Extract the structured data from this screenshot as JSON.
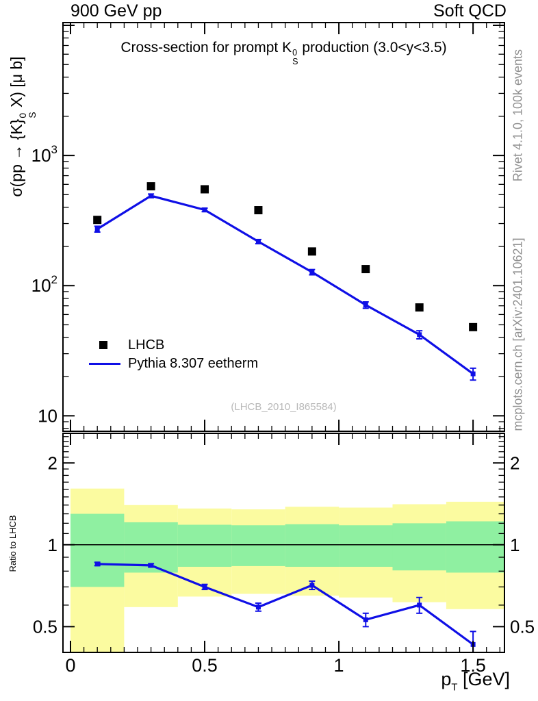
{
  "header": {
    "left": "900 GeV pp",
    "right": "Soft QCD"
  },
  "side_notes": {
    "top": "Rivet 4.1.0,  100k events",
    "bottom": "mcplots.cern.ch [arXiv:2401.10621]"
  },
  "watermark": "(LHCB_2010_I865584)",
  "title": {
    "pre": "Cross-section for prompt K",
    "sup": "0",
    "sub": "S",
    "post": " production (3.0<y<3.5)"
  },
  "axes": {
    "y_main": {
      "pre": "σ(pp → {K}",
      "sup": "0",
      "sub": "S",
      "post": " X) [μ b]"
    },
    "y_ratio": "Ratio to LHCB",
    "x": {
      "pre": "p",
      "sub": "T",
      "post": " [GeV]"
    }
  },
  "legend": [
    {
      "label": "LHCB",
      "marker": "black-square",
      "color": "#000000"
    },
    {
      "label": "Pythia 8.307 eetherm",
      "marker": "blue-line",
      "color": "#0f0fe6"
    }
  ],
  "colors": {
    "blue": "#0f0fe6",
    "band_yellow": "#fbfba0",
    "band_green": "#8ff0a1",
    "gray_text": "#909090",
    "watermark": "#b8b8b8"
  },
  "chart_data": [
    {
      "id": "main",
      "type": "line",
      "yscale": "log",
      "xlim": [
        -0.028,
        1.617
      ],
      "ylim": [
        7.6,
        10500
      ],
      "x": [
        0.1,
        0.3,
        0.5,
        0.7,
        0.9,
        1.1,
        1.3,
        1.5
      ],
      "series": [
        {
          "name": "LHCB",
          "style": "scatter",
          "marker": "square",
          "color": "#000000",
          "values": [
            320,
            580,
            550,
            380,
            183,
            134,
            68,
            48
          ]
        },
        {
          "name": "Pythia 8.307 eetherm",
          "style": "line-markers",
          "color": "#0f0fe6",
          "values": [
            272,
            490,
            382,
            218,
            127,
            71,
            42,
            21
          ],
          "yerr": [
            14,
            16,
            12,
            8,
            6,
            4,
            3,
            2.2
          ]
        }
      ],
      "xticks": [
        {
          "v": 0,
          "label": "0"
        },
        {
          "v": 0.5,
          "label": "0.5"
        },
        {
          "v": 1,
          "label": "1"
        },
        {
          "v": 1.5,
          "label": "1.5"
        }
      ],
      "yticks": [
        {
          "v": 1000,
          "mant": "10",
          "exp": "3"
        },
        {
          "v": 100,
          "mant": "10",
          "exp": "2"
        },
        {
          "v": 10,
          "mant": "10",
          "exp": ""
        }
      ],
      "xminor_step": 0.05,
      "show_x_labels": false
    },
    {
      "id": "ratio",
      "type": "line",
      "yscale": "log",
      "xlim": [
        -0.028,
        1.617
      ],
      "ylim": [
        0.402,
        2.57
      ],
      "refline": 1,
      "bin_edges": [
        0,
        0.2,
        0.4,
        0.6,
        0.8,
        1.0,
        1.2,
        1.4,
        1.617
      ],
      "band_yellow": {
        "lo": [
          0.4,
          0.59,
          0.645,
          0.66,
          0.65,
          0.64,
          0.615,
          0.58
        ],
        "hi": [
          1.61,
          1.4,
          1.36,
          1.35,
          1.38,
          1.37,
          1.41,
          1.44
        ]
      },
      "band_green": {
        "lo": [
          0.7,
          0.79,
          0.83,
          0.835,
          0.83,
          0.83,
          0.805,
          0.79
        ],
        "hi": [
          1.3,
          1.21,
          1.185,
          1.18,
          1.19,
          1.18,
          1.2,
          1.22
        ]
      },
      "x": [
        0.1,
        0.3,
        0.5,
        0.7,
        0.9,
        1.1,
        1.3,
        1.5
      ],
      "series": [
        {
          "name": "Pythia 8.307 eetherm / LHCB",
          "style": "line-markers",
          "color": "#0f0fe6",
          "values": [
            0.85,
            0.84,
            0.7,
            0.59,
            0.71,
            0.53,
            0.6,
            0.43
          ],
          "yerr": [
            0.012,
            0.012,
            0.015,
            0.02,
            0.025,
            0.03,
            0.04,
            0.05
          ]
        }
      ],
      "yticks": [
        {
          "v": 2,
          "label": "2"
        },
        {
          "v": 1,
          "label": "1"
        },
        {
          "v": 0.5,
          "label": "0.5"
        }
      ],
      "xticks": [
        {
          "v": 0,
          "label": "0"
        },
        {
          "v": 0.5,
          "label": "0.5"
        },
        {
          "v": 1,
          "label": "1"
        },
        {
          "v": 1.5,
          "label": "1.5"
        }
      ],
      "xminor_step": 0.05,
      "show_x_labels": true
    }
  ]
}
